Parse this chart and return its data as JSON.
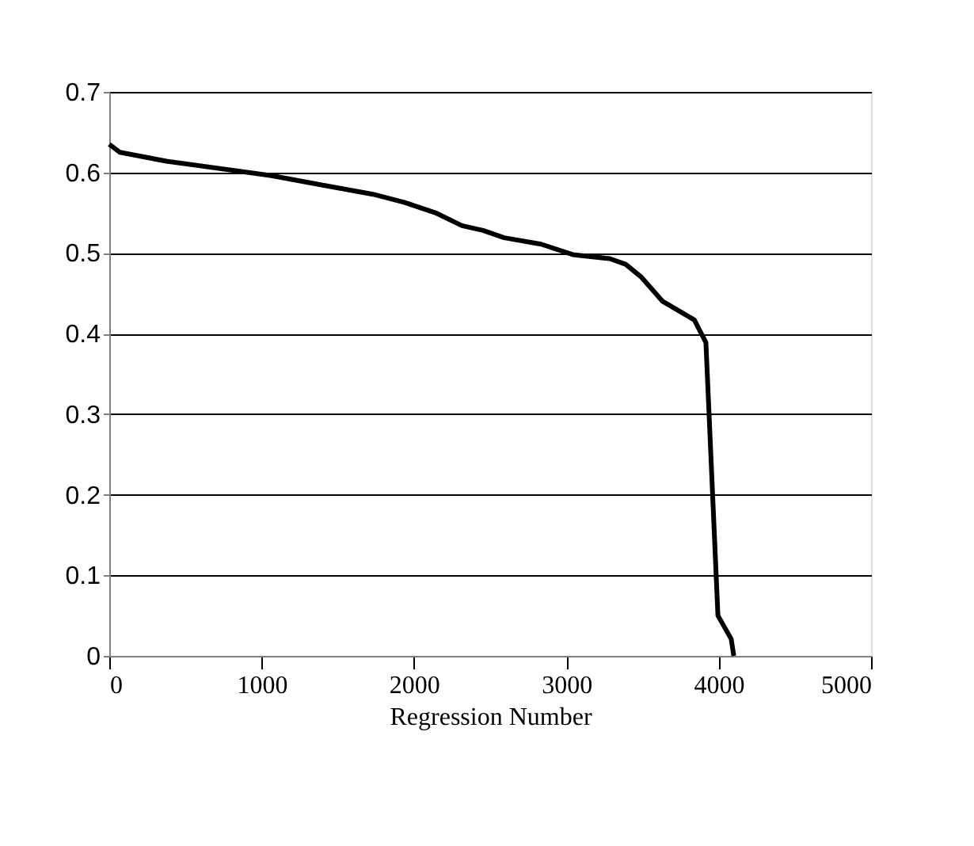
{
  "chart_data": {
    "type": "line",
    "xlabel": "Regression Number",
    "x": [
      0,
      70,
      375,
      1065,
      1380,
      1730,
      1935,
      2140,
      2315,
      2453,
      2592,
      2834,
      3042,
      3285,
      3389,
      3493,
      3632,
      3840,
      3916,
      3995,
      4082,
      4099
    ],
    "series": [
      {
        "color": "#000000",
        "values": [
          0.635,
          0.625,
          0.614,
          0.596,
          0.585,
          0.573,
          0.563,
          0.55,
          0.534,
          0.528,
          0.519,
          0.511,
          0.498,
          0.493,
          0.486,
          0.47,
          0.44,
          0.417,
          0.389,
          0.05,
          0.021,
          0.0
        ]
      }
    ],
    "xlim": [
      0,
      5000
    ],
    "xticks": [
      0,
      1000,
      2000,
      3000,
      4000,
      5000
    ],
    "ylim": [
      0,
      0.7
    ],
    "yticks": [
      0,
      0.1,
      0.2,
      0.3,
      0.4,
      0.5,
      0.6,
      0.7
    ],
    "grid": "y",
    "marker": "none",
    "line_style": "solid"
  }
}
